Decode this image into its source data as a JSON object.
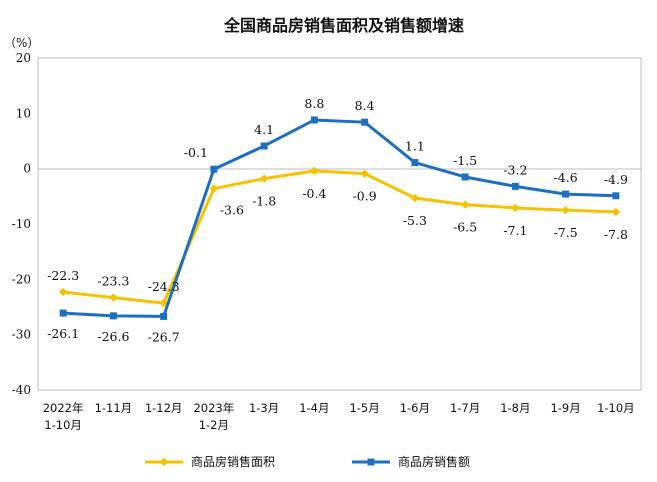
{
  "chart_data": {
    "type": "line",
    "title": "全国商品房销售面积及销售额增速",
    "ylabel": "（%）",
    "xlabel": "",
    "ylim": [
      -40,
      20
    ],
    "yticks": [
      20,
      10,
      0,
      -10,
      -20,
      -30,
      -40
    ],
    "grid": false,
    "legend": "bottom",
    "categories": [
      [
        "2022年",
        "1-10月"
      ],
      [
        "1-11月"
      ],
      [
        "1-12月"
      ],
      [
        "2023年",
        "1-2月"
      ],
      [
        "1-3月"
      ],
      [
        "1-4月"
      ],
      [
        "1-5月"
      ],
      [
        "1-6月"
      ],
      [
        "1-7月"
      ],
      [
        "1-8月"
      ],
      [
        "1-9月"
      ],
      [
        "1-10月"
      ]
    ],
    "series": [
      {
        "name": "商品房销售面积",
        "color": "#F5C200",
        "marker": "diamond",
        "values": [
          -22.3,
          -23.3,
          -24.3,
          -3.6,
          -1.8,
          -0.4,
          -0.9,
          -5.3,
          -6.5,
          -7.1,
          -7.5,
          -7.8
        ],
        "labels": [
          "-22.3",
          "-23.3",
          "-24.3",
          "-3.6",
          "-1.8",
          "-0.4",
          "-0.9",
          "-5.3",
          "-6.5",
          "-7.1",
          "-7.5",
          "-7.8"
        ]
      },
      {
        "name": "商品房销售额",
        "color": "#1F6FC1",
        "marker": "square",
        "values": [
          -26.1,
          -26.6,
          -26.7,
          -0.1,
          4.1,
          8.8,
          8.4,
          1.1,
          -1.5,
          -3.2,
          -4.6,
          -4.9
        ],
        "labels": [
          "-26.1",
          "-26.6",
          "-26.7",
          "-0.1",
          "4.1",
          "8.8",
          "8.4",
          "1.1",
          "-1.5",
          "-3.2",
          "-4.6",
          "-4.9"
        ]
      }
    ]
  }
}
